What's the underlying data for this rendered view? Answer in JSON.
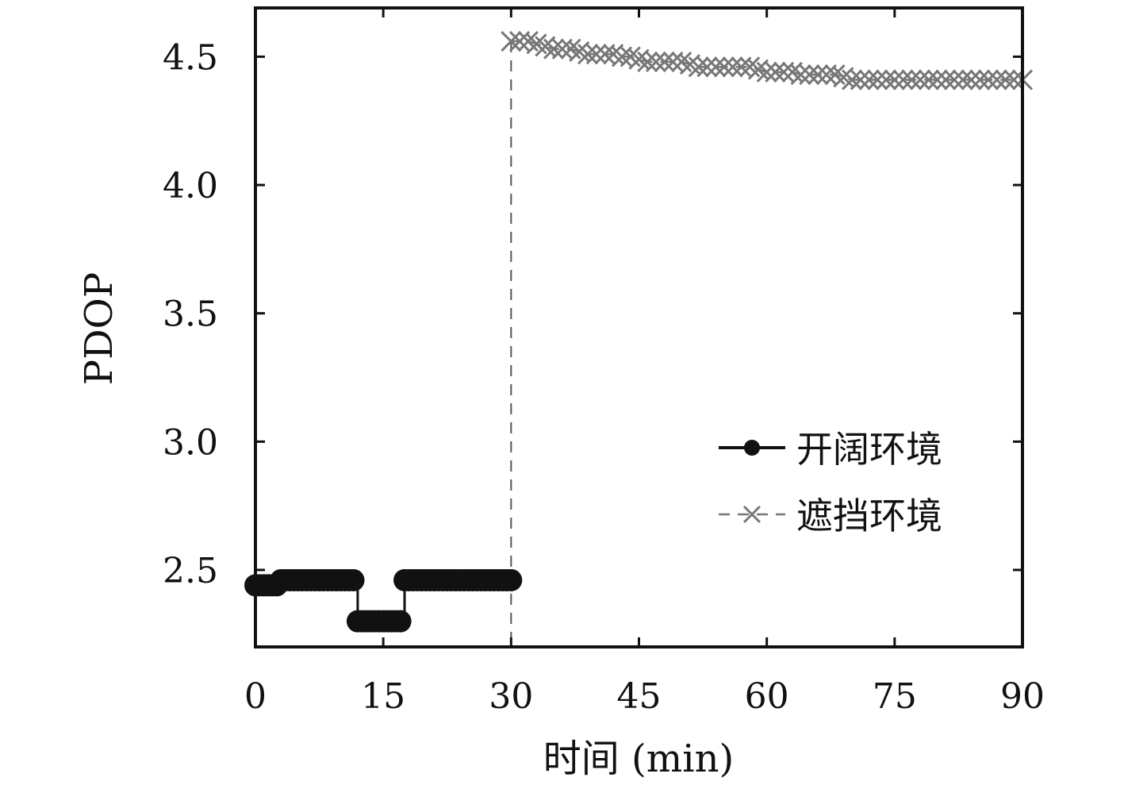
{
  "chart_data": {
    "type": "line",
    "xlabel": "时间 (min)",
    "ylabel": "PDOP",
    "xlim": [
      0,
      90
    ],
    "ylim": [
      2.2,
      4.69
    ],
    "xticks": [
      0,
      15,
      30,
      45,
      60,
      75,
      90
    ],
    "xtick_labels": [
      "0",
      "15",
      "30",
      "45",
      "60",
      "75",
      "90"
    ],
    "yticks": [
      2.5,
      3.0,
      3.5,
      4.0,
      4.5
    ],
    "ytick_labels": [
      "2.5",
      "3.0",
      "3.5",
      "4.0",
      "4.5"
    ],
    "grid": false,
    "legend_position": "lower-right",
    "vline": {
      "x": 30,
      "style": "dashed"
    },
    "series": [
      {
        "name": "开阔环境",
        "color": "#111111",
        "marker": "circle",
        "line": "solid",
        "x": [
          0,
          0.5,
          1,
          1.5,
          2,
          2.5,
          3,
          3.5,
          4,
          4.5,
          5,
          5.5,
          6,
          6.5,
          7,
          7.5,
          8,
          8.5,
          9,
          9.5,
          10,
          10.5,
          11,
          11.5,
          12,
          12.5,
          13,
          13.5,
          14,
          14.5,
          15,
          15.5,
          16,
          16.5,
          17,
          17.5,
          18,
          18.5,
          19,
          19.5,
          20,
          20.5,
          21,
          21.5,
          22,
          22.5,
          23,
          23.5,
          24,
          24.5,
          25,
          25.5,
          26,
          26.5,
          27,
          27.5,
          28,
          28.5,
          29,
          29.5,
          30
        ],
        "y": [
          2.44,
          2.44,
          2.44,
          2.44,
          2.44,
          2.44,
          2.46,
          2.46,
          2.46,
          2.46,
          2.46,
          2.46,
          2.46,
          2.46,
          2.46,
          2.46,
          2.46,
          2.46,
          2.46,
          2.46,
          2.46,
          2.46,
          2.46,
          2.46,
          2.3,
          2.3,
          2.3,
          2.3,
          2.3,
          2.3,
          2.3,
          2.3,
          2.3,
          2.3,
          2.3,
          2.46,
          2.46,
          2.46,
          2.46,
          2.46,
          2.46,
          2.46,
          2.46,
          2.46,
          2.46,
          2.46,
          2.46,
          2.46,
          2.46,
          2.46,
          2.46,
          2.46,
          2.46,
          2.46,
          2.46,
          2.46,
          2.46,
          2.46,
          2.46,
          2.46,
          2.46
        ]
      },
      {
        "name": "遮挡环境",
        "color": "#777777",
        "marker": "x",
        "line": "dashed",
        "x": [
          30,
          31,
          32,
          33,
          34,
          35,
          36,
          37,
          38,
          39,
          40,
          41,
          42,
          43,
          44,
          45,
          46,
          47,
          48,
          49,
          50,
          51,
          52,
          53,
          54,
          55,
          56,
          57,
          58,
          59,
          60,
          61,
          62,
          63,
          64,
          65,
          66,
          67,
          68,
          69,
          70,
          71,
          72,
          73,
          74,
          75,
          76,
          77,
          78,
          79,
          80,
          81,
          82,
          83,
          84,
          85,
          86,
          87,
          88,
          89,
          90
        ],
        "y": [
          4.56,
          4.56,
          4.56,
          4.55,
          4.54,
          4.53,
          4.53,
          4.53,
          4.52,
          4.51,
          4.51,
          4.51,
          4.51,
          4.5,
          4.5,
          4.49,
          4.48,
          4.48,
          4.48,
          4.48,
          4.48,
          4.47,
          4.46,
          4.46,
          4.46,
          4.46,
          4.46,
          4.46,
          4.46,
          4.45,
          4.44,
          4.44,
          4.44,
          4.44,
          4.43,
          4.43,
          4.43,
          4.43,
          4.43,
          4.42,
          4.41,
          4.41,
          4.41,
          4.41,
          4.41,
          4.41,
          4.41,
          4.41,
          4.41,
          4.41,
          4.41,
          4.41,
          4.41,
          4.41,
          4.41,
          4.41,
          4.41,
          4.41,
          4.41,
          4.41,
          4.41
        ]
      }
    ]
  }
}
